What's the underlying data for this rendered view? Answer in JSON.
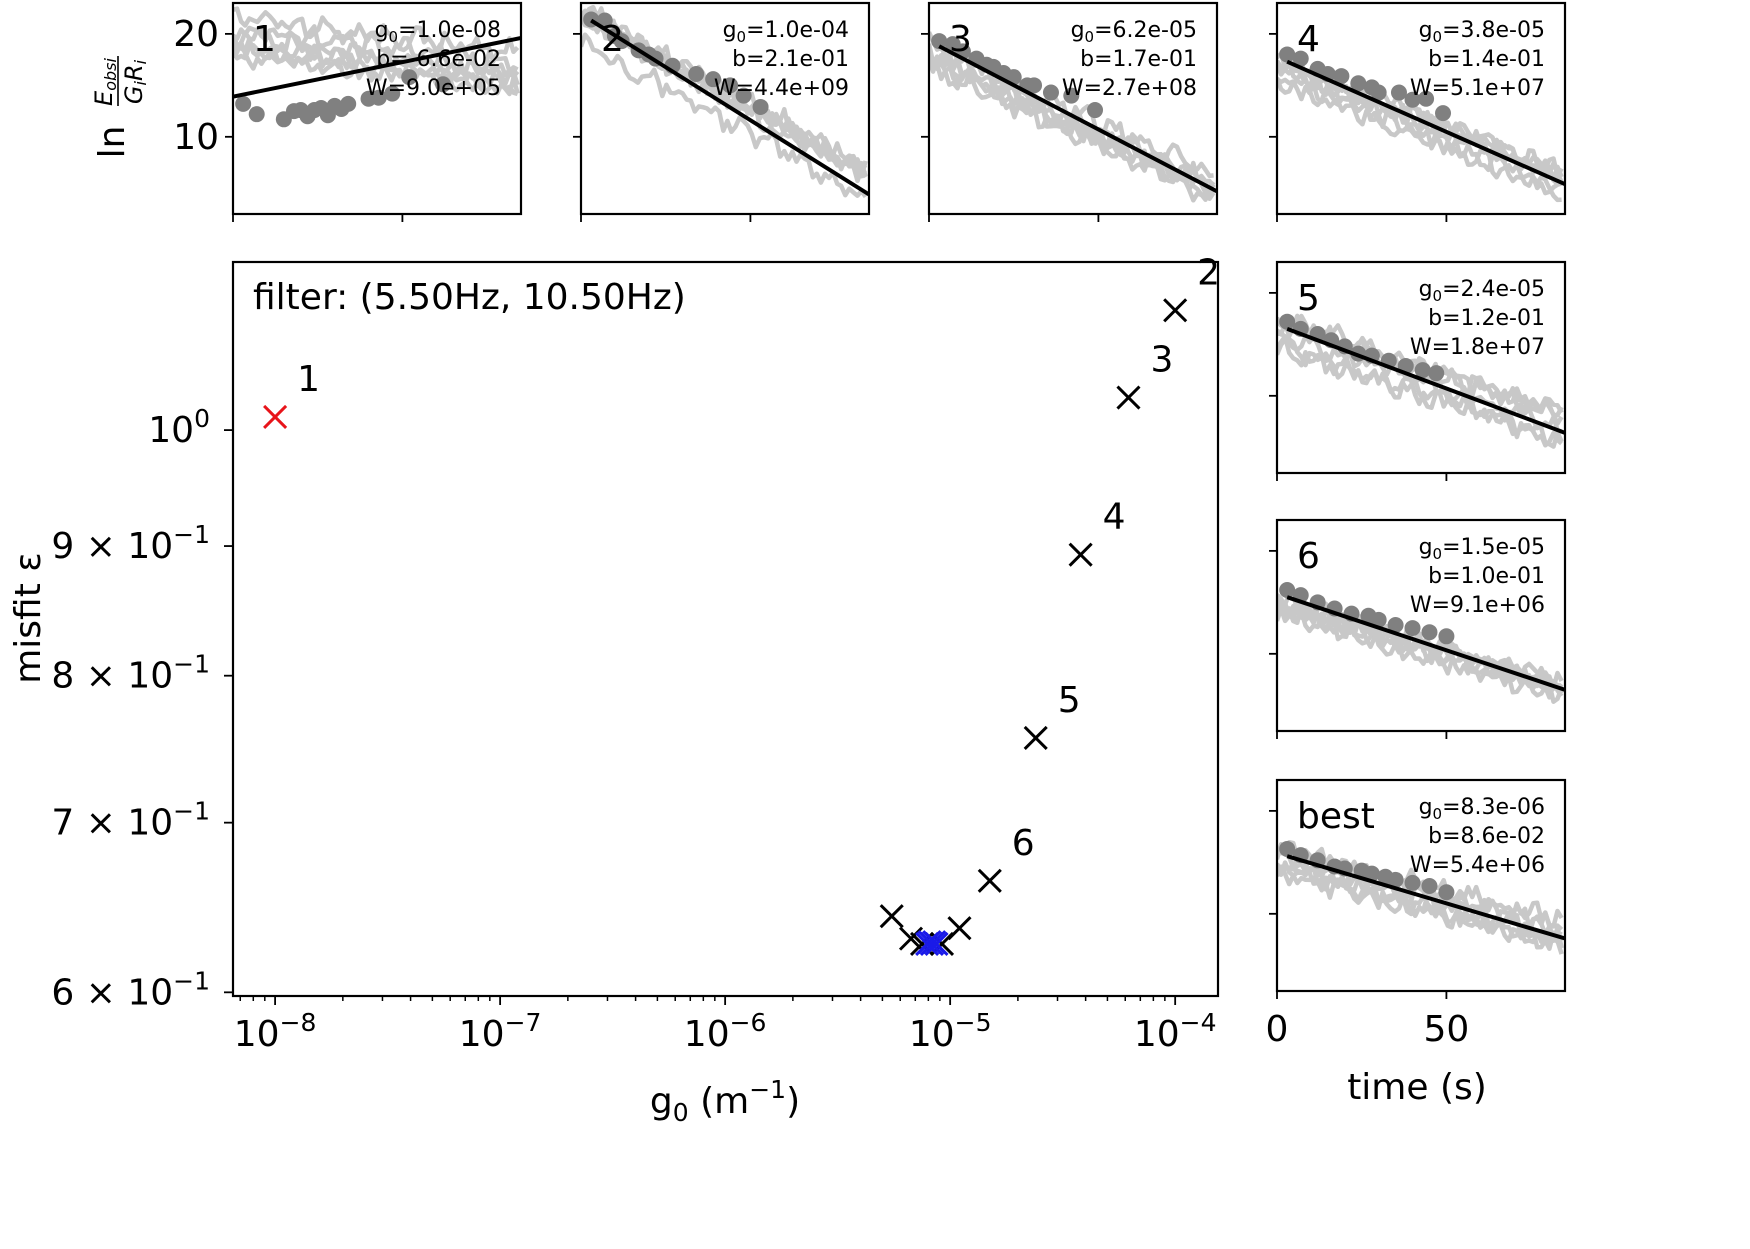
{
  "chart_data": [
    {
      "type": "scatter",
      "role": "main",
      "annotation": "filter: (5.50Hz, 10.50Hz)",
      "xlabel": "g",
      "xlabel_sub": "0",
      "xlabel_unit": " (m",
      "xlabel_unit_sup": "−1",
      "xlabel_unit_end": ")",
      "ylabel": "misfit ε",
      "xscale": "log",
      "yscale": "log",
      "xlim": [
        6.5e-09,
        0.000155
      ],
      "ylim": [
        0.598,
        1.165
      ],
      "xticks": [
        {
          "value": 1e-08,
          "base": "10",
          "exp": "−8"
        },
        {
          "value": 1e-07,
          "base": "10",
          "exp": "−7"
        },
        {
          "value": 1e-06,
          "base": "10",
          "exp": "−6"
        },
        {
          "value": 1e-05,
          "base": "10",
          "exp": "−5"
        },
        {
          "value": 0.0001,
          "base": "10",
          "exp": "−4"
        }
      ],
      "yticks": [
        {
          "value": 1.0,
          "base": "10",
          "exp": "0"
        },
        {
          "value": 0.9,
          "base": "9 × 10",
          "exp": "−1"
        },
        {
          "value": 0.8,
          "base": "8 × 10",
          "exp": "−1"
        },
        {
          "value": 0.7,
          "base": "7 × 10",
          "exp": "−1"
        },
        {
          "value": 0.6,
          "base": "6 × 10",
          "exp": "−1"
        }
      ],
      "labeled_points": [
        {
          "label": "1",
          "g0": 1e-08,
          "misfit": 1.012,
          "color": "#e8141a"
        },
        {
          "label": "2",
          "g0": 0.0001,
          "misfit": 1.115,
          "color": "#000000"
        },
        {
          "label": "3",
          "g0": 6.2e-05,
          "misfit": 1.03,
          "color": "#000000"
        },
        {
          "label": "4",
          "g0": 3.8e-05,
          "misfit": 0.893,
          "color": "#000000"
        },
        {
          "label": "5",
          "g0": 2.4e-05,
          "misfit": 0.756,
          "color": "#000000"
        },
        {
          "label": "6",
          "g0": 1.5e-05,
          "misfit": 0.664,
          "color": "#000000"
        }
      ],
      "other_points": [
        {
          "g0": 5.5e-06,
          "misfit": 0.643,
          "color": "#000000"
        },
        {
          "g0": 6.7e-06,
          "misfit": 0.63,
          "color": "#000000"
        },
        {
          "g0": 7.5e-06,
          "misfit": 0.627,
          "color": "#000000"
        },
        {
          "g0": 9.2e-06,
          "misfit": 0.627,
          "color": "#000000"
        },
        {
          "g0": 1.1e-05,
          "misfit": 0.636,
          "color": "#000000"
        }
      ],
      "best_points": [
        {
          "g0": 7.9e-06,
          "misfit": 0.627
        },
        {
          "g0": 8.1e-06,
          "misfit": 0.628
        },
        {
          "g0": 8.3e-06,
          "misfit": 0.627
        },
        {
          "g0": 8.5e-06,
          "misfit": 0.628
        },
        {
          "g0": 8.7e-06,
          "misfit": 0.627
        }
      ],
      "best_color": "#1a1ae8"
    },
    {
      "type": "line",
      "role": "panel",
      "label": "1",
      "g0_value": "1.0e-08",
      "b_value": "-6.6e-02",
      "W_value": "9.0e+05",
      "ylabel_prefix": "ln",
      "ylabel_num": "E",
      "ylabel_num_sub": "obsi",
      "ylabel_den": "G",
      "ylabel_den_sub": "i",
      "ylabel_den2": "R",
      "ylabel_den2_sub": "i",
      "yticks": [
        {
          "value": 20,
          "label": "20"
        },
        {
          "value": 10,
          "label": "10"
        }
      ],
      "fit_line": {
        "x": [
          0,
          85
        ],
        "y": [
          13.9,
          19.6
        ]
      },
      "gray_trend": {
        "start": 20.0,
        "end": 16.5,
        "spread": 2.0
      },
      "points": [
        [
          3,
          13.2
        ],
        [
          7,
          12.2
        ],
        [
          15,
          11.7
        ],
        [
          18,
          12.5
        ],
        [
          20,
          12.6
        ],
        [
          22,
          12.0
        ],
        [
          24,
          12.6
        ],
        [
          26,
          12.8
        ],
        [
          28,
          12.1
        ],
        [
          30,
          13.0
        ],
        [
          32,
          12.7
        ],
        [
          34,
          13.2
        ],
        [
          40,
          13.7
        ],
        [
          43,
          13.8
        ],
        [
          47,
          14.2
        ],
        [
          52,
          15.8
        ],
        [
          62,
          15.1
        ]
      ]
    },
    {
      "type": "line",
      "role": "panel",
      "label": "2",
      "g0_value": "1.0e-04",
      "b_value": "2.1e-01",
      "W_value": "4.4e+09",
      "yticks": [
        {
          "value": 20,
          "label": ""
        },
        {
          "value": 10,
          "label": ""
        }
      ],
      "fit_line": {
        "x": [
          3,
          85
        ],
        "y": [
          21.3,
          4.4
        ]
      },
      "gray_trend": {
        "start": 21.0,
        "end": 5.5,
        "spread": 1.6
      },
      "points": [
        [
          3,
          21.4
        ],
        [
          7,
          21.3
        ],
        [
          10,
          19.8
        ],
        [
          12,
          19.3
        ],
        [
          17,
          18.4
        ],
        [
          20,
          18.0
        ],
        [
          22,
          17.6
        ],
        [
          27,
          16.9
        ],
        [
          34,
          16.1
        ],
        [
          39,
          15.6
        ],
        [
          44,
          15.0
        ],
        [
          48,
          14.0
        ],
        [
          53,
          12.9
        ]
      ]
    },
    {
      "type": "line",
      "role": "panel",
      "label": "3",
      "g0_value": "6.2e-05",
      "b_value": "1.7e-01",
      "W_value": "2.7e+08",
      "yticks": [
        {
          "value": 20,
          "label": ""
        },
        {
          "value": 10,
          "label": ""
        }
      ],
      "fit_line": {
        "x": [
          3,
          85
        ],
        "y": [
          18.8,
          4.7
        ]
      },
      "gray_trend": {
        "start": 18.5,
        "end": 5.5,
        "spread": 1.6
      },
      "points": [
        [
          3,
          19.3
        ],
        [
          7,
          19.0
        ],
        [
          10,
          18.3
        ],
        [
          14,
          17.6
        ],
        [
          17,
          17.0
        ],
        [
          19,
          16.8
        ],
        [
          22,
          16.2
        ],
        [
          25,
          15.8
        ],
        [
          29,
          15.0
        ],
        [
          31,
          15.0
        ],
        [
          36,
          14.3
        ],
        [
          42,
          14.0
        ],
        [
          49,
          12.6
        ]
      ]
    },
    {
      "type": "line",
      "role": "panel",
      "label": "4",
      "g0_value": "3.8e-05",
      "b_value": "1.4e-01",
      "W_value": "5.1e+07",
      "yticks": [
        {
          "value": 20,
          "label": ""
        },
        {
          "value": 10,
          "label": ""
        }
      ],
      "fit_line": {
        "x": [
          3,
          85
        ],
        "y": [
          17.3,
          5.4
        ]
      },
      "gray_trend": {
        "start": 17.0,
        "end": 6.0,
        "spread": 1.6
      },
      "points": [
        [
          3,
          18.0
        ],
        [
          7,
          17.6
        ],
        [
          12,
          16.6
        ],
        [
          15,
          16.1
        ],
        [
          19,
          15.9
        ],
        [
          24,
          15.2
        ],
        [
          28,
          14.8
        ],
        [
          30,
          14.3
        ],
        [
          36,
          14.3
        ],
        [
          40,
          13.6
        ],
        [
          44,
          13.7
        ],
        [
          49,
          12.3
        ]
      ]
    },
    {
      "type": "line",
      "role": "panel",
      "label": "5",
      "g0_value": "2.4e-05",
      "b_value": "1.2e-01",
      "W_value": "1.8e+07",
      "yticks": [
        {
          "value": 20,
          "label": ""
        },
        {
          "value": 10,
          "label": ""
        }
      ],
      "fit_line": {
        "x": [
          3,
          85
        ],
        "y": [
          16.5,
          6.4
        ]
      },
      "gray_trend": {
        "start": 16.3,
        "end": 7.0,
        "spread": 1.5
      },
      "points": [
        [
          3,
          17.2
        ],
        [
          7,
          16.5
        ],
        [
          12,
          16.0
        ],
        [
          16,
          15.4
        ],
        [
          20,
          14.8
        ],
        [
          24,
          14.1
        ],
        [
          28,
          13.9
        ],
        [
          33,
          13.4
        ],
        [
          38,
          12.9
        ],
        [
          43,
          12.5
        ],
        [
          47,
          12.2
        ]
      ]
    },
    {
      "type": "line",
      "role": "panel",
      "label": "6",
      "g0_value": "1.5e-05",
      "b_value": "1.0e-01",
      "W_value": "9.1e+06",
      "yticks": [
        {
          "value": 20,
          "label": ""
        },
        {
          "value": 10,
          "label": ""
        }
      ],
      "fit_line": {
        "x": [
          3,
          85
        ],
        "y": [
          15.5,
          6.5
        ]
      },
      "gray_trend": {
        "start": 15.3,
        "end": 7.3,
        "spread": 1.4
      },
      "points": [
        [
          3,
          16.2
        ],
        [
          7,
          15.7
        ],
        [
          12,
          15.0
        ],
        [
          17,
          14.4
        ],
        [
          22,
          13.9
        ],
        [
          27,
          13.7
        ],
        [
          30,
          13.3
        ],
        [
          35,
          12.8
        ],
        [
          40,
          12.5
        ],
        [
          45,
          12.1
        ],
        [
          50,
          11.7
        ]
      ]
    },
    {
      "type": "line",
      "role": "panel",
      "label": "best",
      "g0_value": "8.3e-06",
      "b_value": "8.6e-02",
      "W_value": "5.4e+06",
      "yticks": [
        {
          "value": 20,
          "label": ""
        },
        {
          "value": 10,
          "label": ""
        }
      ],
      "xlabel": "time (s)",
      "xticks": [
        {
          "value": 0,
          "label": "0"
        },
        {
          "value": 50,
          "label": "50"
        }
      ],
      "fit_line": {
        "x": [
          3,
          85
        ],
        "y": [
          15.6,
          7.6
        ]
      },
      "gray_trend": {
        "start": 15.3,
        "end": 8.2,
        "spread": 1.3
      },
      "points": [
        [
          3,
          16.3
        ],
        [
          7,
          15.7
        ],
        [
          12,
          15.2
        ],
        [
          17,
          14.6
        ],
        [
          20,
          14.4
        ],
        [
          25,
          14.2
        ],
        [
          28,
          13.9
        ],
        [
          32,
          13.6
        ],
        [
          35,
          13.3
        ],
        [
          40,
          13.0
        ],
        [
          45,
          12.7
        ],
        [
          50,
          12.1
        ]
      ]
    }
  ],
  "colors": {
    "gray_line": "#c8c8c8",
    "dot": "#808080",
    "fit": "#000000"
  },
  "panel_text": {
    "g_prefix": "g",
    "g_sub": "0",
    "g_eq": "=",
    "b_prefix": "b=",
    "W_prefix": "W="
  }
}
